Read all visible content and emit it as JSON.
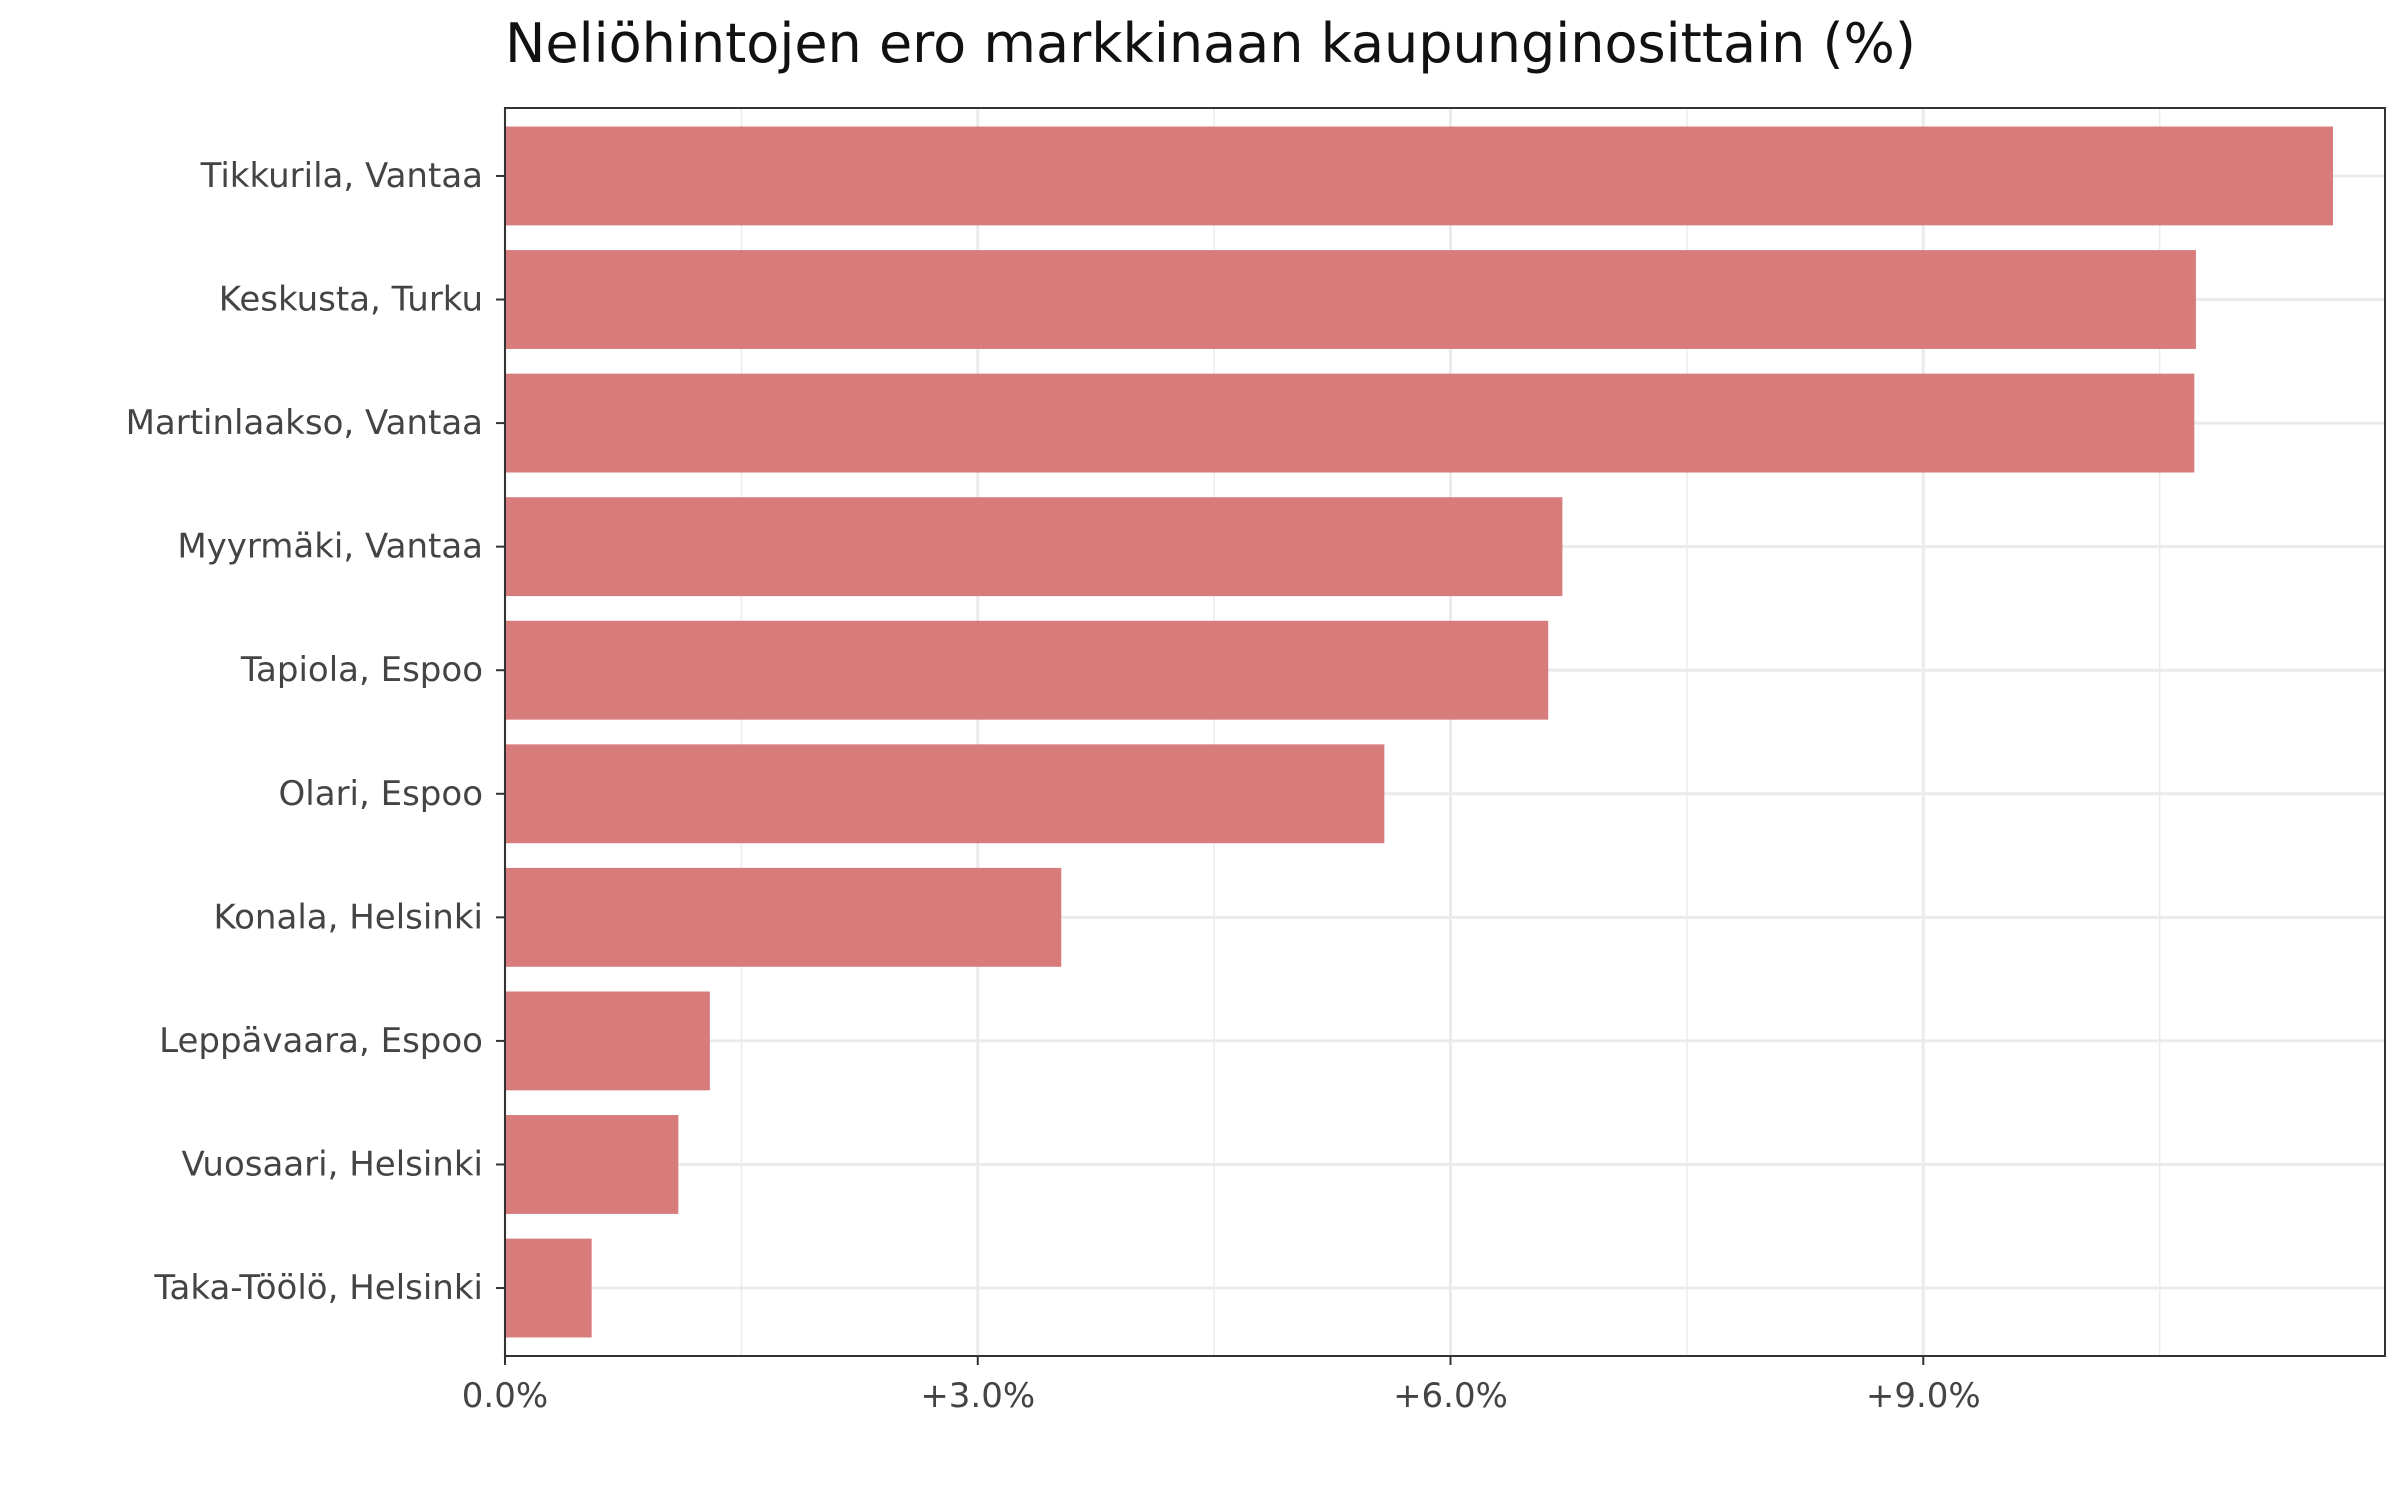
{
  "chart_data": {
    "type": "bar",
    "orientation": "horizontal",
    "title": "Neliöhintojen ero markkinaan kaupunginosittain (%)",
    "xlabel": "",
    "ylabel": "",
    "categories": [
      "Tikkurila, Vantaa",
      "Keskusta, Turku",
      "Martinlaakso, Vantaa",
      "Myyrmäki, Vantaa",
      "Tapiola, Espoo",
      "Olari, Espoo",
      "Konala, Helsinki",
      "Leppävaara, Espoo",
      "Vuosaari, Helsinki",
      "Taka-Töölö, Helsinki"
    ],
    "values": [
      11.6,
      10.73,
      10.72,
      6.71,
      6.62,
      5.58,
      3.53,
      1.3,
      1.1,
      0.55
    ],
    "xlim": [
      0,
      11.93
    ],
    "x_ticks": [
      0,
      3,
      6,
      9
    ],
    "x_tick_labels": [
      "0.0%",
      "+3.0%",
      "+6.0%",
      "+9.0%"
    ],
    "grid": true,
    "legend": "none",
    "colors": {
      "bar": "#d77b7b",
      "grid": "#ebebeb",
      "panel_border": "#333333",
      "text": "#444444",
      "title": "#111111"
    }
  }
}
